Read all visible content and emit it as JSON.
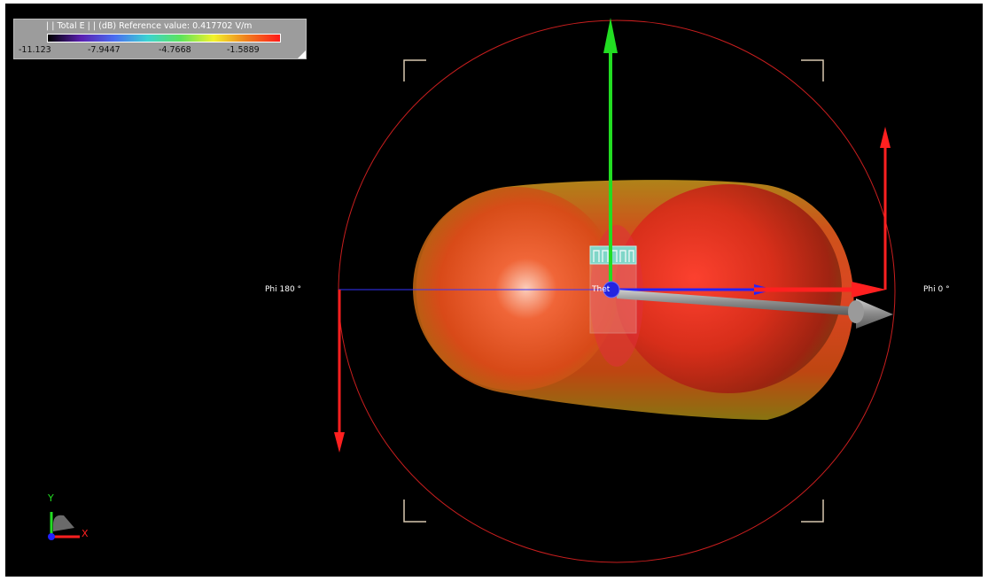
{
  "legend": {
    "title": "| | Total E | | (dB) Reference value: 0.417702 V/m",
    "ticks": [
      "-11.123",
      "-7.9447",
      "-4.7668",
      "-1.5889"
    ],
    "colorscale": [
      "#000000",
      "#5a1fb0",
      "#4a6cf0",
      "#3cd2d2",
      "#5ce35c",
      "#f2f22a",
      "#f07e1e",
      "#ff1a1a"
    ]
  },
  "labels": {
    "phi_left": "Phi 180 °",
    "phi_right": "Phi 0 °",
    "theta": "Thet"
  },
  "axis_triad": {
    "y": "Y",
    "x": "X"
  },
  "colors": {
    "background": "#000000",
    "bounding_circle": "#c81e1e",
    "x_arrow": "#ff2020",
    "y_arrow": "#22dd22",
    "z_arrow": "#2222ff",
    "pattern": "#e04818"
  }
}
